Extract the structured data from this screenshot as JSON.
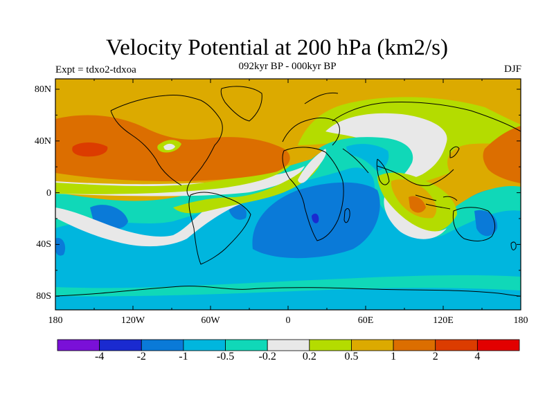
{
  "header": {
    "title": "Velocity Potential at 200 hPa (km2/s)",
    "subtitle": "092kyr BP - 000kyr BP",
    "experiment": "Expt = tdxo2-tdxoa",
    "season": "DJF"
  },
  "map": {
    "projection": "cylindrical-equidistant",
    "lon_range": [
      -180,
      180
    ],
    "lat_range": [
      -90,
      90
    ],
    "coastlines": true,
    "x_tick_labels": [
      "180",
      "120W",
      "60W",
      "0",
      "60E",
      "120E",
      "180"
    ],
    "y_tick_labels": [
      "80N",
      "40N",
      "0",
      "40S",
      "80S"
    ]
  },
  "colorbar": {
    "colors": [
      "#7a10d8",
      "#1a2ad0",
      "#0a7ad8",
      "#00b6de",
      "#10d8b8",
      "#e8e8e8",
      "#b4dc00",
      "#dcaa00",
      "#dc6e00",
      "#dc3c00",
      "#e20000"
    ],
    "labels": [
      "-4",
      "-2",
      "-1",
      "-0.5",
      "-0.2",
      "0.2",
      "0.5",
      "1",
      "2",
      "4"
    ]
  },
  "colors": {
    "background_field": "#dcaa00",
    "frame": "#000000",
    "coastline": "#000000"
  }
}
